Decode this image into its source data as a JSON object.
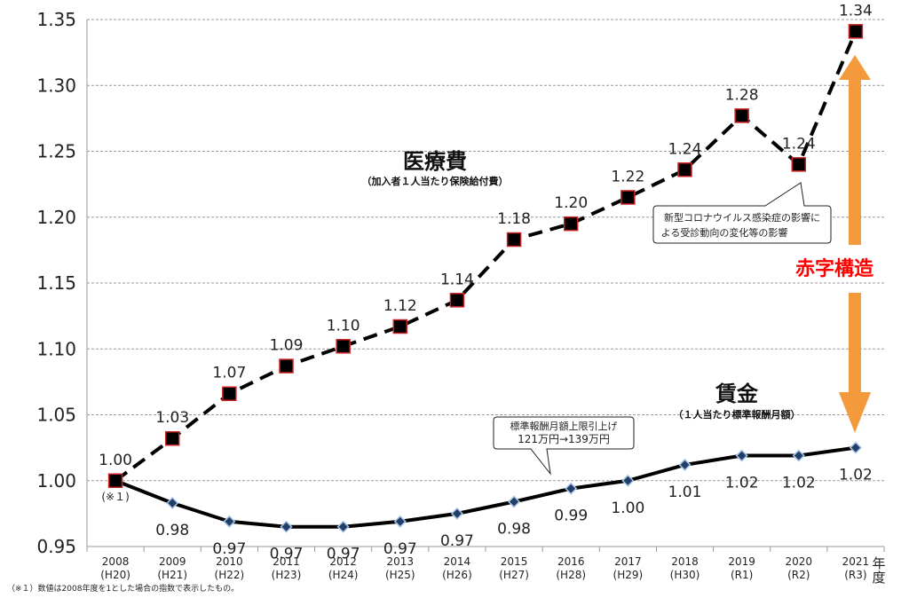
{
  "chart_data": {
    "type": "line",
    "x": [
      "2008",
      "2009",
      "2010",
      "2011",
      "2012",
      "2013",
      "2014",
      "2015",
      "2016",
      "2017",
      "2018",
      "2019",
      "2020",
      "2021"
    ],
    "x_sublabels": [
      "(H20)",
      "(H21)",
      "(H22)",
      "(H23)",
      "(H24)",
      "(H25)",
      "(H26)",
      "(H27)",
      "(H28)",
      "(H29)",
      "(H30)",
      "(R1)",
      "(R2)",
      "(R3)"
    ],
    "x_unit_label": "年度",
    "ylim": [
      0.95,
      1.35
    ],
    "yticks": [
      "0.95",
      "1.00",
      "1.05",
      "1.10",
      "1.15",
      "1.20",
      "1.25",
      "1.30",
      "1.35"
    ],
    "grid": true,
    "series": [
      {
        "name": "医療費",
        "subtitle": "（加入者１人当たり保険給付費）",
        "values": [
          1.0,
          1.032,
          1.066,
          1.087,
          1.102,
          1.117,
          1.137,
          1.183,
          1.195,
          1.215,
          1.236,
          1.277,
          1.24,
          1.341
        ],
        "labels": [
          "1.00",
          "1.03",
          "1.07",
          "1.09",
          "1.10",
          "1.12",
          "1.14",
          "1.18",
          "1.20",
          "1.22",
          "1.24",
          "1.28",
          "1.24",
          "1.34"
        ],
        "color": "#000000",
        "marker_edge": "#cc2222"
      },
      {
        "name": "賃金",
        "subtitle": "（１人当たり標準報酬月額）",
        "values": [
          1.0,
          0.983,
          0.969,
          0.965,
          0.965,
          0.969,
          0.975,
          0.984,
          0.994,
          1.0,
          1.012,
          1.019,
          1.019,
          1.025
        ],
        "labels": [
          "",
          "0.98",
          "0.97",
          "0.97",
          "0.97",
          "0.97",
          "0.97",
          "0.98",
          "0.99",
          "1.00",
          "1.01",
          "1.02",
          "1.02",
          "1.02"
        ],
        "color": "#000000",
        "marker_fill": "#1f3f66"
      }
    ],
    "annotations": {
      "note_mark": "(※１)",
      "callout_covid": [
        "新型コロナウイルス感染症の影響に",
        "よる受診動向の変化等の影響"
      ],
      "callout_wage": [
        "標準報酬月額上限引上げ",
        "121万円→139万円"
      ],
      "deficit_label": "赤字構造",
      "deficit_color": "#ff0000",
      "arrow_color": "#f39a3c"
    },
    "footnote": "（※１）数値は2008年度を1とした場合の指数で表示したもの。"
  }
}
